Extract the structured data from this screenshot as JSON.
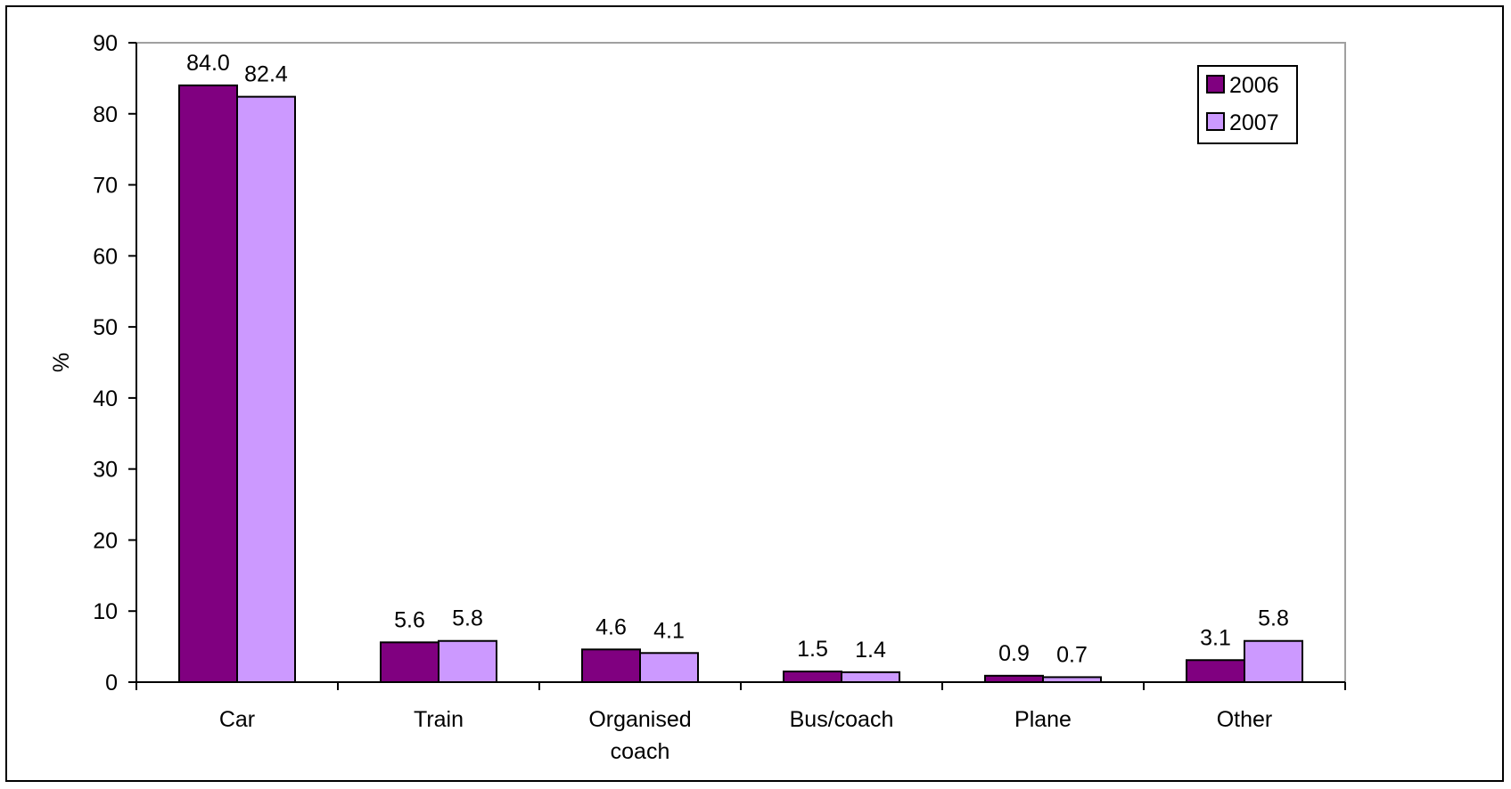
{
  "chart_data": {
    "type": "bar",
    "title": "",
    "xlabel": "",
    "ylabel": "%",
    "ylim": [
      0,
      90
    ],
    "yticks": [
      0,
      10,
      20,
      30,
      40,
      50,
      60,
      70,
      80,
      90
    ],
    "grid": false,
    "legend_position": "top-right",
    "categories": [
      [
        "Car"
      ],
      [
        "Train"
      ],
      [
        "Organised",
        "coach"
      ],
      [
        "Bus/coach"
      ],
      [
        "Plane"
      ],
      [
        "Other"
      ]
    ],
    "series": [
      {
        "name": "2006",
        "color": "#800080",
        "values": [
          84.0,
          5.6,
          4.6,
          1.5,
          0.9,
          3.1
        ],
        "labels": [
          "84.0",
          "5.6",
          "4.6",
          "1.5",
          "0.9",
          "3.1"
        ]
      },
      {
        "name": "2007",
        "color": "#CC99FF",
        "values": [
          82.4,
          5.8,
          4.1,
          1.4,
          0.7,
          5.8
        ],
        "labels": [
          "82.4",
          "5.8",
          "4.1",
          "1.4",
          "0.7",
          "5.8"
        ]
      }
    ],
    "plot_border_color": "#A0A0A0"
  }
}
